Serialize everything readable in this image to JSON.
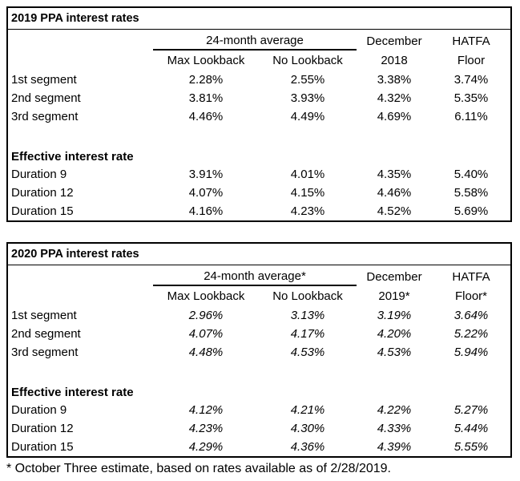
{
  "colors": {
    "background": "#ffffff",
    "text": "#000000",
    "border": "#000000"
  },
  "table_2019": {
    "title": "2019 PPA interest rates",
    "group_header": "24-month average",
    "top_headers": {
      "december": "December",
      "hatfa": "HATFA"
    },
    "sub_headers": {
      "max_lookback": "Max Lookback",
      "no_lookback": "No Lookback",
      "december": "2018",
      "hatfa": "Floor"
    },
    "segment_rows": [
      {
        "label": "1st segment",
        "values": [
          "2.28%",
          "2.55%",
          "3.38%",
          "3.74%"
        ]
      },
      {
        "label": "2nd segment",
        "values": [
          "3.81%",
          "3.93%",
          "4.32%",
          "5.35%"
        ]
      },
      {
        "label": "3rd segment",
        "values": [
          "4.46%",
          "4.49%",
          "4.69%",
          "6.11%"
        ]
      }
    ],
    "section_label": "Effective interest rate",
    "duration_rows": [
      {
        "label": "Duration 9",
        "values": [
          "3.91%",
          "4.01%",
          "4.35%",
          "5.40%"
        ]
      },
      {
        "label": "Duration 12",
        "values": [
          "4.07%",
          "4.15%",
          "4.46%",
          "5.58%"
        ]
      },
      {
        "label": "Duration 15",
        "values": [
          "4.16%",
          "4.23%",
          "4.52%",
          "5.69%"
        ]
      }
    ]
  },
  "table_2020": {
    "title": "2020 PPA interest rates",
    "group_header": "24-month average*",
    "top_headers": {
      "december": "December",
      "hatfa": "HATFA"
    },
    "sub_headers": {
      "max_lookback": "Max Lookback",
      "no_lookback": "No Lookback",
      "december": "2019*",
      "hatfa": "Floor*"
    },
    "segment_rows": [
      {
        "label": "1st segment",
        "values": [
          "2.96%",
          "3.13%",
          "3.19%",
          "3.64%"
        ]
      },
      {
        "label": "2nd segment",
        "values": [
          "4.07%",
          "4.17%",
          "4.20%",
          "5.22%"
        ]
      },
      {
        "label": "3rd segment",
        "values": [
          "4.48%",
          "4.53%",
          "4.53%",
          "5.94%"
        ]
      }
    ],
    "section_label": "Effective interest rate",
    "duration_rows": [
      {
        "label": "Duration 9",
        "values": [
          "4.12%",
          "4.21%",
          "4.22%",
          "5.27%"
        ]
      },
      {
        "label": "Duration 12",
        "values": [
          "4.23%",
          "4.30%",
          "4.33%",
          "5.44%"
        ]
      },
      {
        "label": "Duration 15",
        "values": [
          "4.29%",
          "4.36%",
          "4.39%",
          "5.55%"
        ]
      }
    ]
  },
  "footnote": "* October Three estimate, based on rates available as of 2/28/2019."
}
